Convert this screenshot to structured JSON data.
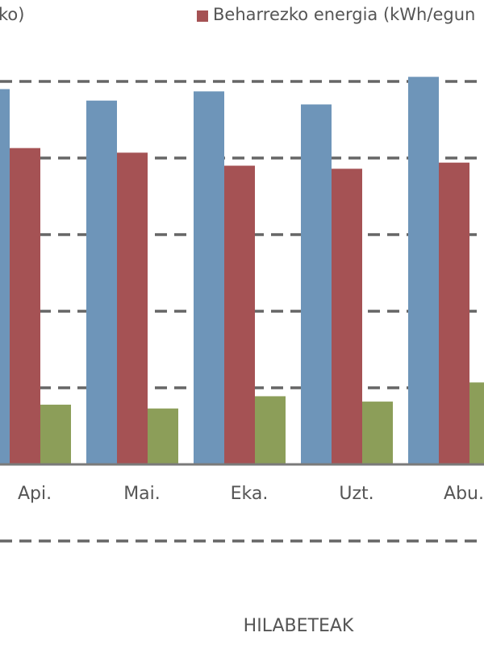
{
  "chart_data": {
    "type": "bar",
    "legend_left_fragment": "ko)",
    "categories": [
      "Api.",
      "Mai.",
      "Eka.",
      "Uzt.",
      "Abu."
    ],
    "series": [
      {
        "values": [
          490,
          475,
          487,
          470,
          506
        ],
        "color": "#6e95b9"
      },
      {
        "name": "Beharrezko energia (kWh/egun",
        "values": [
          413,
          407,
          390,
          386,
          394
        ],
        "color": "#a55254"
      },
      {
        "values": [
          78,
          73,
          89,
          82,
          107
        ],
        "color": "#8c9e59"
      }
    ],
    "xlabel": "HILABETEAK",
    "ylim": [
      -100,
      500
    ],
    "gridlines": [
      -100,
      100,
      200,
      300,
      400,
      500
    ],
    "grid": true,
    "grid_style": "dashed",
    "legend_position": "top"
  }
}
